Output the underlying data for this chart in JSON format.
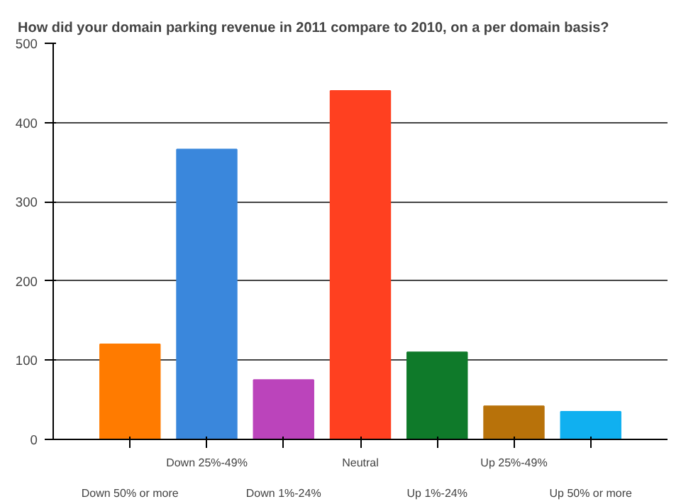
{
  "chart_data": {
    "type": "bar",
    "title": "How did your domain parking revenue in 2011 compare to 2010, on a per domain basis?",
    "categories": [
      "Down 50% or more",
      "Down 25%-49%",
      "Down 1%-24%",
      "Neutral",
      "Up 1%-24%",
      "Up 25%-49%",
      "Up 50% or more"
    ],
    "values": [
      120,
      366,
      75,
      440,
      110,
      42,
      35
    ],
    "colors": [
      "#ff7b00",
      "#3a87dc",
      "#bb44bb",
      "#ff4020",
      "#0f7a2a",
      "#b8720a",
      "#10b0f0"
    ],
    "ylim": [
      0,
      500
    ],
    "yticks": [
      0,
      100,
      200,
      300,
      400,
      500
    ],
    "grid": "y"
  }
}
